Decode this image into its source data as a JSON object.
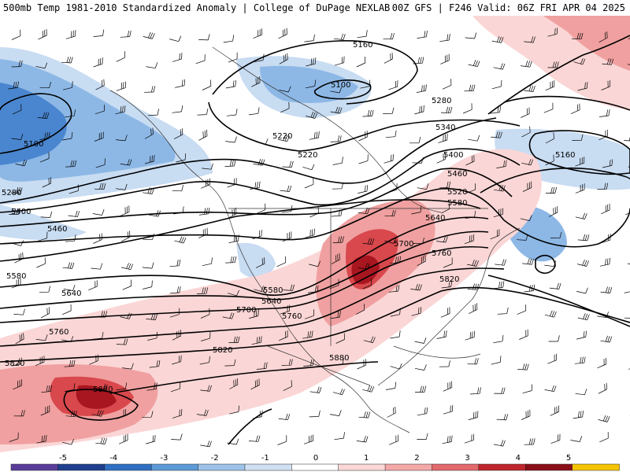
{
  "header": {
    "title": "500mb Temp 1981-2010 Standardized Anomaly | College of DuPage NEXLAB",
    "run_info": "00Z GFS | F246 Valid: 06Z FRI APR 04 2025"
  },
  "contour_labels": [
    "5160",
    "5100",
    "5280",
    "5220",
    "5340",
    "5400",
    "5460",
    "5520",
    "5580",
    "5640",
    "5700",
    "5760",
    "5820",
    "5880",
    "5220",
    "5160",
    "5100",
    "5280",
    "5400",
    "5460",
    "5580",
    "5640",
    "5700",
    "5760",
    "5820",
    "5880",
    "5820",
    "5760",
    "5640",
    "5580"
  ],
  "colorbar": {
    "ticks": [
      "-5",
      "-4",
      "-3",
      "-2",
      "-1",
      "0",
      "1",
      "2",
      "3",
      "4",
      "5"
    ],
    "colors": [
      "#5a3d9a",
      "#1f3f8f",
      "#2f6fc2",
      "#5d9ad8",
      "#9ec2e8",
      "#cfe0f2",
      "#ffffff",
      "#fbd7d7",
      "#f4a8a8",
      "#e2696c",
      "#c0262d",
      "#8a0e18",
      "#f5c400"
    ]
  },
  "anomaly_colors": {
    "cold_strong": "#4a86cf",
    "cold_mid": "#8db8e6",
    "cold_light": "#c8dcf2",
    "warm_light": "#fbd6d6",
    "warm_mid": "#f0a0a0",
    "warm_strong": "#d8484c",
    "warm_max": "#a81620"
  }
}
